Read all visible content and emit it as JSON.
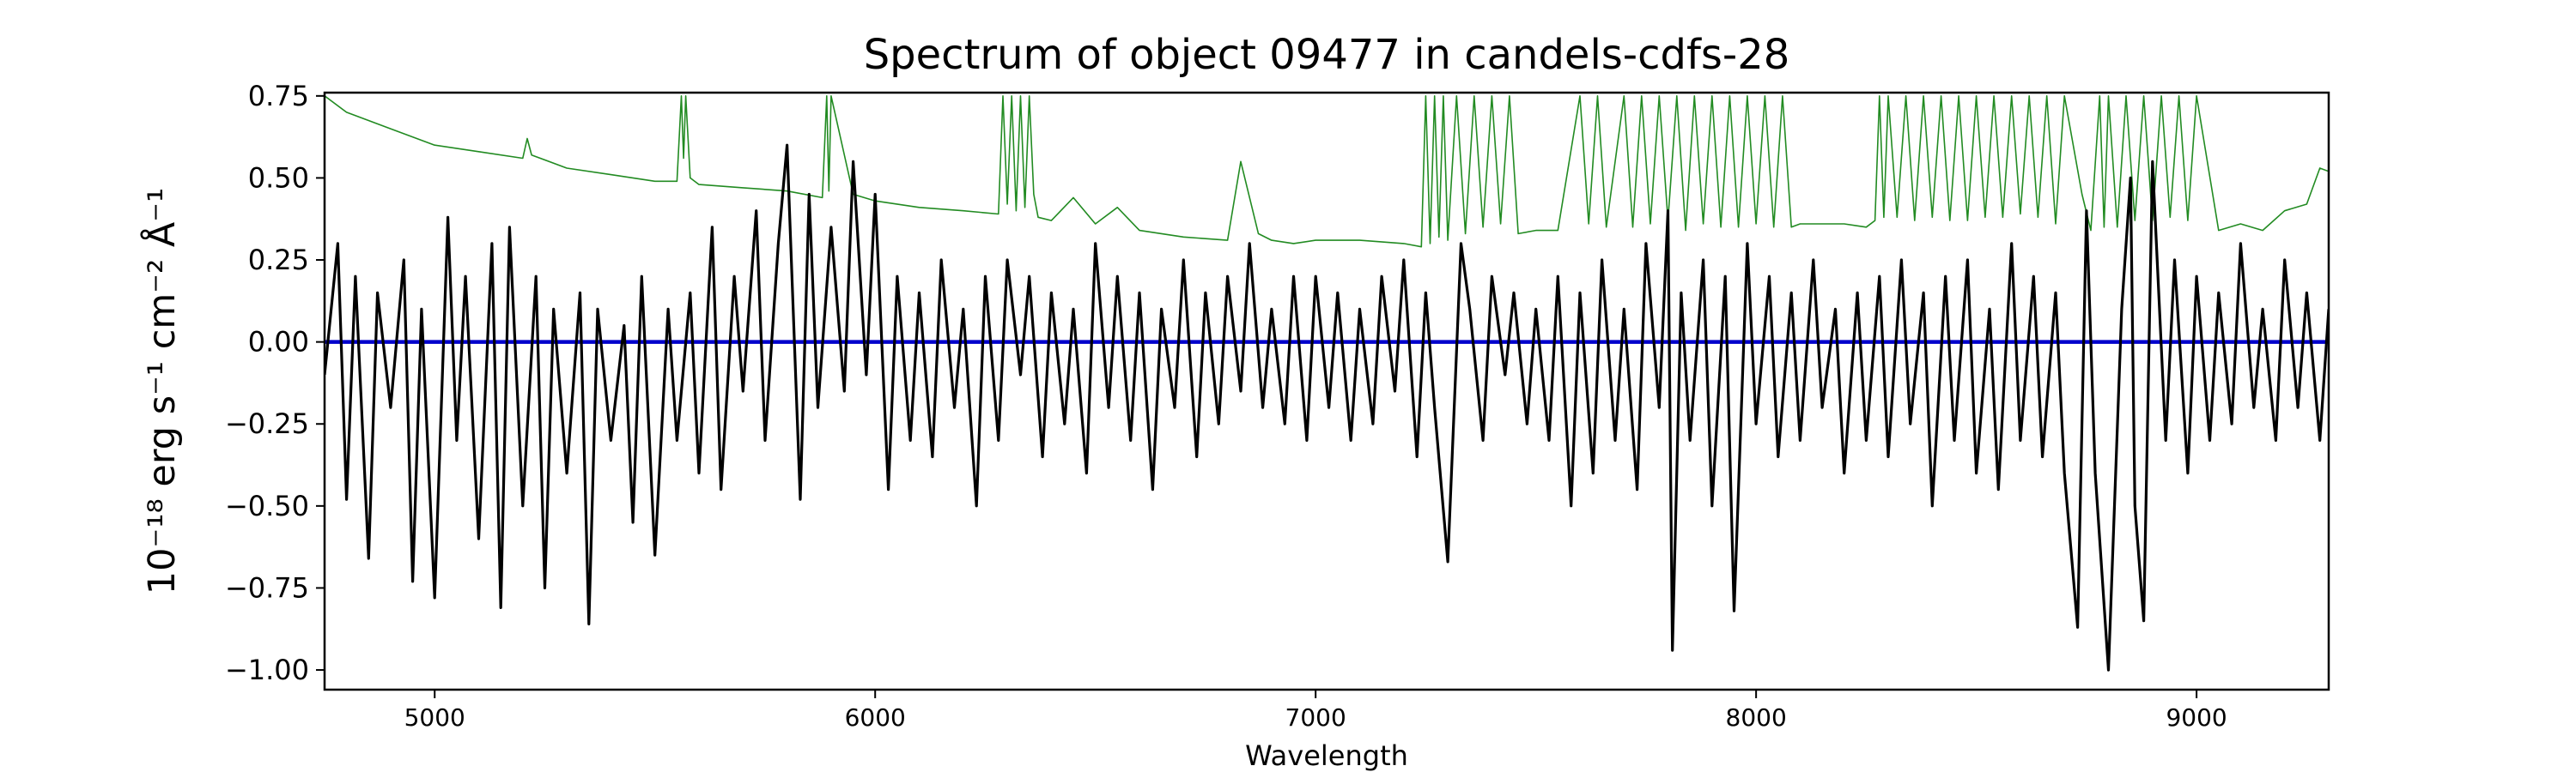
{
  "chart_data": {
    "type": "line",
    "title": "Spectrum of object 09477 in candels-cdfs-28",
    "xlabel": "Wavelength",
    "ylabel": "10⁻¹⁸ erg s⁻¹ cm⁻² Å⁻¹",
    "xlim": [
      4750,
      9300
    ],
    "ylim": [
      -1.06,
      0.76
    ],
    "xticks": [
      5000,
      6000,
      7000,
      8000,
      9000
    ],
    "xtick_labels": [
      "5000",
      "6000",
      "7000",
      "8000",
      "9000"
    ],
    "yticks": [
      0.75,
      0.5,
      0.25,
      0.0,
      -0.25,
      -0.5,
      -0.75,
      -1.0
    ],
    "ytick_labels": [
      "0.75",
      "0.50",
      "0.25",
      "0.00",
      "−0.25",
      "−0.50",
      "−0.75",
      "−1.00"
    ],
    "grid": false,
    "legend": "none",
    "series": [
      {
        "role": "noise",
        "color": "#228b22",
        "x": [
          4750,
          4800,
          4900,
          5000,
          5100,
          5200,
          5210,
          5220,
          5300,
          5400,
          5500,
          5550,
          5560,
          5565,
          5570,
          5580,
          5600,
          5700,
          5800,
          5880,
          5890,
          5895,
          5900,
          5950,
          6000,
          6100,
          6200,
          6280,
          6290,
          6300,
          6310,
          6320,
          6330,
          6340,
          6350,
          6360,
          6370,
          6400,
          6450,
          6500,
          6550,
          6600,
          6700,
          6800,
          6830,
          6870,
          6900,
          6950,
          7000,
          7100,
          7200,
          7240,
          7250,
          7260,
          7270,
          7280,
          7290,
          7300,
          7320,
          7340,
          7360,
          7380,
          7400,
          7420,
          7440,
          7460,
          7500,
          7550,
          7600,
          7620,
          7640,
          7660,
          7700,
          7720,
          7740,
          7760,
          7780,
          7800,
          7820,
          7840,
          7860,
          7880,
          7900,
          7920,
          7940,
          7960,
          7980,
          8000,
          8020,
          8040,
          8060,
          8080,
          8100,
          8150,
          8200,
          8250,
          8270,
          8280,
          8290,
          8300,
          8320,
          8340,
          8360,
          8380,
          8400,
          8420,
          8440,
          8460,
          8480,
          8500,
          8520,
          8540,
          8560,
          8580,
          8600,
          8620,
          8640,
          8660,
          8680,
          8700,
          8740,
          8760,
          8780,
          8790,
          8800,
          8820,
          8840,
          8860,
          8880,
          8900,
          8920,
          8940,
          8960,
          8980,
          9000,
          9050,
          9100,
          9150,
          9200,
          9250,
          9280,
          9300
        ],
        "y": [
          0.75,
          0.7,
          0.65,
          0.6,
          0.58,
          0.56,
          0.62,
          0.57,
          0.53,
          0.51,
          0.49,
          0.49,
          0.75,
          0.56,
          0.75,
          0.5,
          0.48,
          0.47,
          0.46,
          0.44,
          0.75,
          0.46,
          0.75,
          0.45,
          0.43,
          0.41,
          0.4,
          0.39,
          0.75,
          0.42,
          0.75,
          0.4,
          0.75,
          0.41,
          0.75,
          0.45,
          0.38,
          0.37,
          0.44,
          0.36,
          0.41,
          0.34,
          0.32,
          0.31,
          0.55,
          0.33,
          0.31,
          0.3,
          0.31,
          0.31,
          0.3,
          0.29,
          0.75,
          0.3,
          0.75,
          0.32,
          0.75,
          0.31,
          0.75,
          0.33,
          0.75,
          0.35,
          0.75,
          0.36,
          0.75,
          0.33,
          0.34,
          0.34,
          0.75,
          0.36,
          0.75,
          0.35,
          0.75,
          0.35,
          0.75,
          0.36,
          0.75,
          0.37,
          0.75,
          0.34,
          0.75,
          0.36,
          0.75,
          0.35,
          0.75,
          0.35,
          0.75,
          0.36,
          0.75,
          0.35,
          0.75,
          0.35,
          0.36,
          0.36,
          0.36,
          0.35,
          0.37,
          0.75,
          0.38,
          0.75,
          0.38,
          0.75,
          0.37,
          0.75,
          0.38,
          0.75,
          0.37,
          0.75,
          0.37,
          0.75,
          0.38,
          0.75,
          0.38,
          0.75,
          0.39,
          0.75,
          0.38,
          0.75,
          0.36,
          0.75,
          0.45,
          0.34,
          0.75,
          0.35,
          0.75,
          0.35,
          0.75,
          0.37,
          0.75,
          0.37,
          0.75,
          0.38,
          0.75,
          0.37,
          0.75,
          0.34,
          0.36,
          0.34,
          0.4,
          0.42,
          0.53,
          0.52
        ]
      },
      {
        "role": "model",
        "color": "#0000cc",
        "x": [
          4750,
          9300
        ],
        "y": [
          0.0,
          0.0
        ]
      },
      {
        "role": "flux",
        "color": "#000000",
        "x": [
          4750,
          4780,
          4800,
          4820,
          4850,
          4870,
          4900,
          4930,
          4950,
          4970,
          5000,
          5030,
          5050,
          5070,
          5100,
          5130,
          5150,
          5170,
          5200,
          5230,
          5250,
          5270,
          5300,
          5330,
          5350,
          5370,
          5400,
          5430,
          5450,
          5470,
          5500,
          5530,
          5550,
          5580,
          5600,
          5630,
          5650,
          5680,
          5700,
          5730,
          5750,
          5780,
          5800,
          5830,
          5850,
          5870,
          5900,
          5930,
          5950,
          5980,
          6000,
          6030,
          6050,
          6080,
          6100,
          6130,
          6150,
          6180,
          6200,
          6230,
          6250,
          6280,
          6300,
          6330,
          6350,
          6380,
          6400,
          6430,
          6450,
          6480,
          6500,
          6530,
          6550,
          6580,
          6600,
          6630,
          6650,
          6680,
          6700,
          6730,
          6750,
          6780,
          6800,
          6830,
          6850,
          6880,
          6900,
          6930,
          6950,
          6980,
          7000,
          7030,
          7050,
          7080,
          7100,
          7130,
          7150,
          7180,
          7200,
          7230,
          7250,
          7270,
          7300,
          7330,
          7350,
          7380,
          7400,
          7430,
          7450,
          7480,
          7500,
          7530,
          7550,
          7580,
          7600,
          7630,
          7650,
          7680,
          7700,
          7730,
          7750,
          7780,
          7800,
          7810,
          7830,
          7850,
          7880,
          7900,
          7930,
          7950,
          7980,
          8000,
          8030,
          8050,
          8080,
          8100,
          8130,
          8150,
          8180,
          8200,
          8230,
          8250,
          8280,
          8300,
          8330,
          8350,
          8380,
          8400,
          8430,
          8450,
          8480,
          8500,
          8530,
          8550,
          8580,
          8600,
          8630,
          8650,
          8680,
          8700,
          8730,
          8750,
          8770,
          8800,
          8830,
          8850,
          8860,
          8880,
          8900,
          8930,
          8950,
          8980,
          9000,
          9030,
          9050,
          9080,
          9100,
          9130,
          9150,
          9180,
          9200,
          9230,
          9250,
          9280,
          9300
        ],
        "y": [
          -0.1,
          0.3,
          -0.48,
          0.2,
          -0.66,
          0.15,
          -0.2,
          0.25,
          -0.73,
          0.1,
          -0.78,
          0.38,
          -0.3,
          0.2,
          -0.6,
          0.3,
          -0.81,
          0.35,
          -0.5,
          0.2,
          -0.75,
          0.1,
          -0.4,
          0.15,
          -0.86,
          0.1,
          -0.3,
          0.05,
          -0.55,
          0.2,
          -0.65,
          0.1,
          -0.3,
          0.15,
          -0.4,
          0.35,
          -0.45,
          0.2,
          -0.15,
          0.4,
          -0.3,
          0.3,
          0.6,
          -0.48,
          0.45,
          -0.2,
          0.35,
          -0.15,
          0.55,
          -0.1,
          0.45,
          -0.45,
          0.2,
          -0.3,
          0.15,
          -0.35,
          0.25,
          -0.2,
          0.1,
          -0.5,
          0.2,
          -0.3,
          0.25,
          -0.1,
          0.2,
          -0.35,
          0.15,
          -0.25,
          0.1,
          -0.4,
          0.3,
          -0.2,
          0.2,
          -0.3,
          0.15,
          -0.45,
          0.1,
          -0.2,
          0.25,
          -0.35,
          0.15,
          -0.25,
          0.2,
          -0.15,
          0.3,
          -0.2,
          0.1,
          -0.25,
          0.2,
          -0.3,
          0.2,
          -0.2,
          0.15,
          -0.3,
          0.1,
          -0.25,
          0.2,
          -0.15,
          0.25,
          -0.35,
          0.15,
          -0.2,
          -0.67,
          0.3,
          0.1,
          -0.3,
          0.2,
          -0.1,
          0.15,
          -0.25,
          0.1,
          -0.3,
          0.2,
          -0.5,
          0.15,
          -0.4,
          0.25,
          -0.3,
          0.1,
          -0.45,
          0.3,
          -0.2,
          0.4,
          -0.94,
          0.15,
          -0.3,
          0.25,
          -0.5,
          0.2,
          -0.82,
          0.3,
          -0.25,
          0.2,
          -0.35,
          0.15,
          -0.3,
          0.25,
          -0.2,
          0.1,
          -0.4,
          0.15,
          -0.3,
          0.2,
          -0.35,
          0.25,
          -0.25,
          0.15,
          -0.5,
          0.2,
          -0.3,
          0.25,
          -0.4,
          0.1,
          -0.45,
          0.3,
          -0.3,
          0.2,
          -0.35,
          0.15,
          -0.4,
          -0.87,
          0.4,
          -0.4,
          -1.0,
          0.1,
          0.5,
          -0.5,
          -0.85,
          0.55,
          -0.3,
          0.25,
          -0.4,
          0.2,
          -0.3,
          0.15,
          -0.25,
          0.3,
          -0.2,
          0.1,
          -0.3,
          0.25,
          -0.2,
          0.15,
          -0.3,
          0.1
        ]
      }
    ]
  }
}
